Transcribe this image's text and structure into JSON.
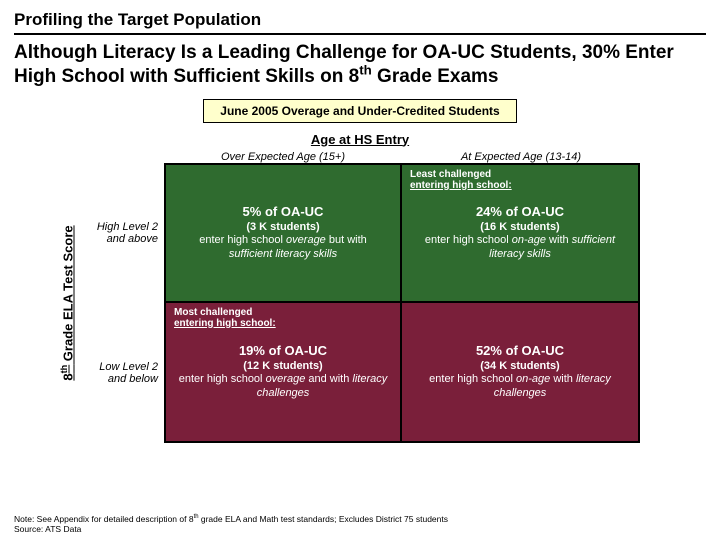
{
  "eyebrow": "Profiling the Target Population",
  "headline_pre": "Although Literacy Is a Leading Challenge for OA-UC Students, 30% Enter High School with Sufficient Skills on 8",
  "headline_sup": "th",
  "headline_post": " Grade Exams",
  "banner": "June 2005 Overage and Under-Credited Students",
  "age_title": "Age at HS Entry",
  "col_headers": {
    "left": "Over Expected Age (15+)",
    "right": "At Expected Age (13-14)"
  },
  "y_axis": {
    "pre": "8",
    "sup": "th",
    "post": " Grade ELA Test Score"
  },
  "row_labels": {
    "top": {
      "l1": "High Level 2",
      "l2": "and above"
    },
    "bottom": {
      "l1": "Low Level 2",
      "l2": "and below"
    }
  },
  "quadrants": {
    "tl": {
      "bg": "#2f6b2f",
      "pct": "5% of OA-UC",
      "students": "(3 K students)",
      "desc_html": "enter high school <em>overage</em> but with <em>sufficient literacy skills</em>"
    },
    "tr": {
      "bg": "#2f6b2f",
      "pct": "24% of OA-UC",
      "students": "(16 K students)",
      "desc_html": "enter high school <em>on-age</em> with <em>sufficient literacy skills</em>",
      "tag": {
        "l1": "Least challenged",
        "l2": "entering high school:"
      }
    },
    "bl": {
      "bg": "#7a1f3a",
      "pct": "19% of OA-UC",
      "students": "(12 K students)",
      "desc_html": "enter high school <em>overage</em> and with <em>literacy challenges</em>",
      "tag": {
        "l1": "Most challenged",
        "l2": "entering high school:"
      }
    },
    "br": {
      "bg": "#7a1f3a",
      "pct": "52% of OA-UC",
      "students": "(34 K students)",
      "desc_html": "enter high school <em>on-age</em> with <em>literacy challenges</em>"
    }
  },
  "footnote": {
    "l1_pre": "Note: See Appendix for detailed description of 8",
    "l1_sup": "th",
    "l1_post": " grade ELA and Math test standards; Excludes District 75 students",
    "l2": "Source: ATS Data"
  },
  "colors": {
    "banner_bg": "#ffffcc",
    "green": "#2f6b2f",
    "maroon": "#7a1f3a"
  }
}
